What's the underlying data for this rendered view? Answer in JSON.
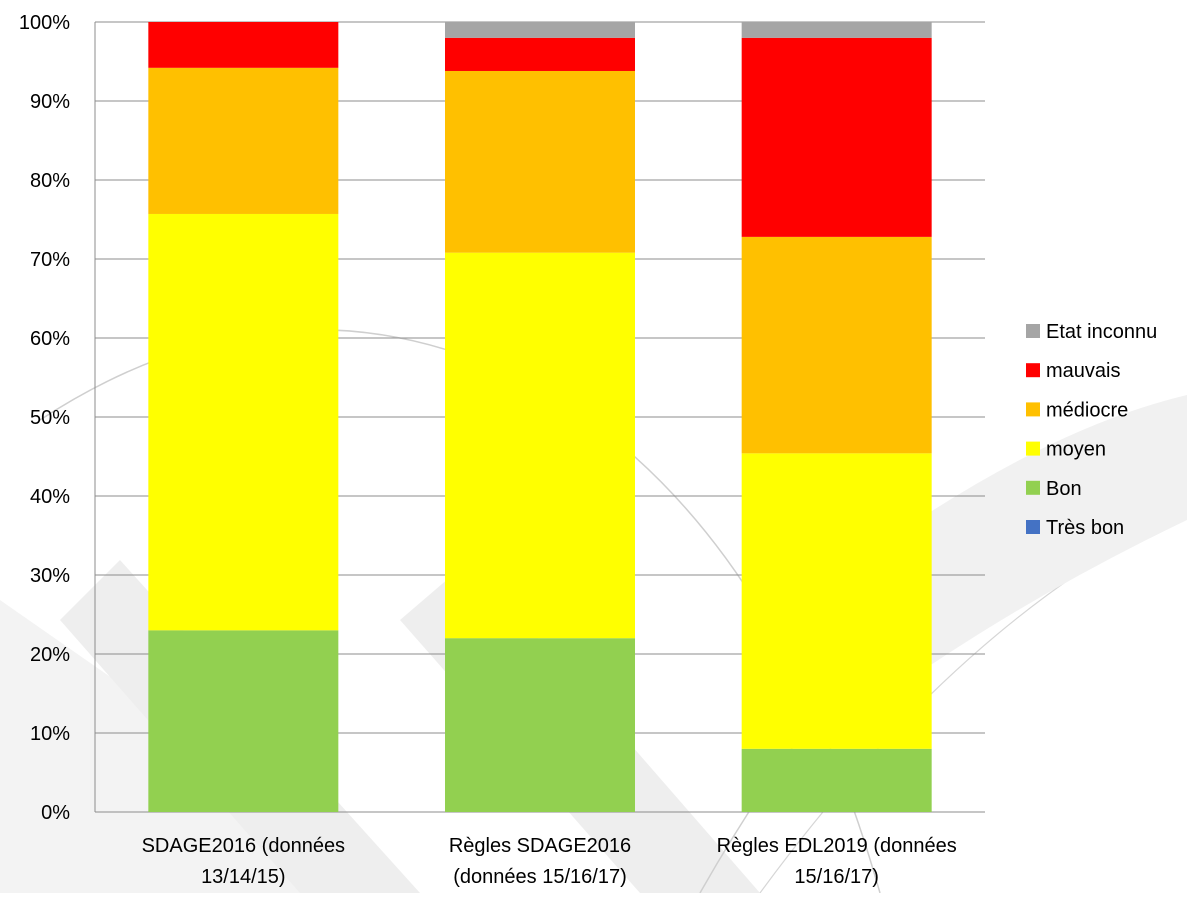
{
  "chart_data": {
    "type": "bar",
    "stacked": true,
    "categories": [
      [
        "SDAGE2016 (données",
        "13/14/15)"
      ],
      [
        "Règles SDAGE2016",
        "(données 15/16/17)"
      ],
      [
        "Règles EDL2019 (données",
        "15/16/17)"
      ]
    ],
    "series": [
      {
        "name": "Très bon",
        "color": "#4472C4",
        "values": [
          0,
          0,
          0
        ]
      },
      {
        "name": "Bon",
        "color": "#92D050",
        "values": [
          23,
          22,
          8
        ]
      },
      {
        "name": "moyen",
        "color": "#FFFF00",
        "values": [
          52.7,
          48.8,
          37.4
        ]
      },
      {
        "name": "médiocre",
        "color": "#FFC000",
        "values": [
          18.5,
          23,
          27.4
        ]
      },
      {
        "name": "mauvais",
        "color": "#FF0000",
        "values": [
          5.8,
          4.2,
          25.2
        ]
      },
      {
        "name": "Etat inconnu",
        "color": "#A5A5A5",
        "values": [
          0,
          2,
          2
        ]
      }
    ],
    "ylim": [
      0,
      100
    ],
    "yticks": [
      "0%",
      "10%",
      "20%",
      "30%",
      "40%",
      "50%",
      "60%",
      "70%",
      "80%",
      "90%",
      "100%"
    ],
    "grid": true,
    "legend_position": "right",
    "title": "",
    "xlabel": "",
    "ylabel": ""
  }
}
